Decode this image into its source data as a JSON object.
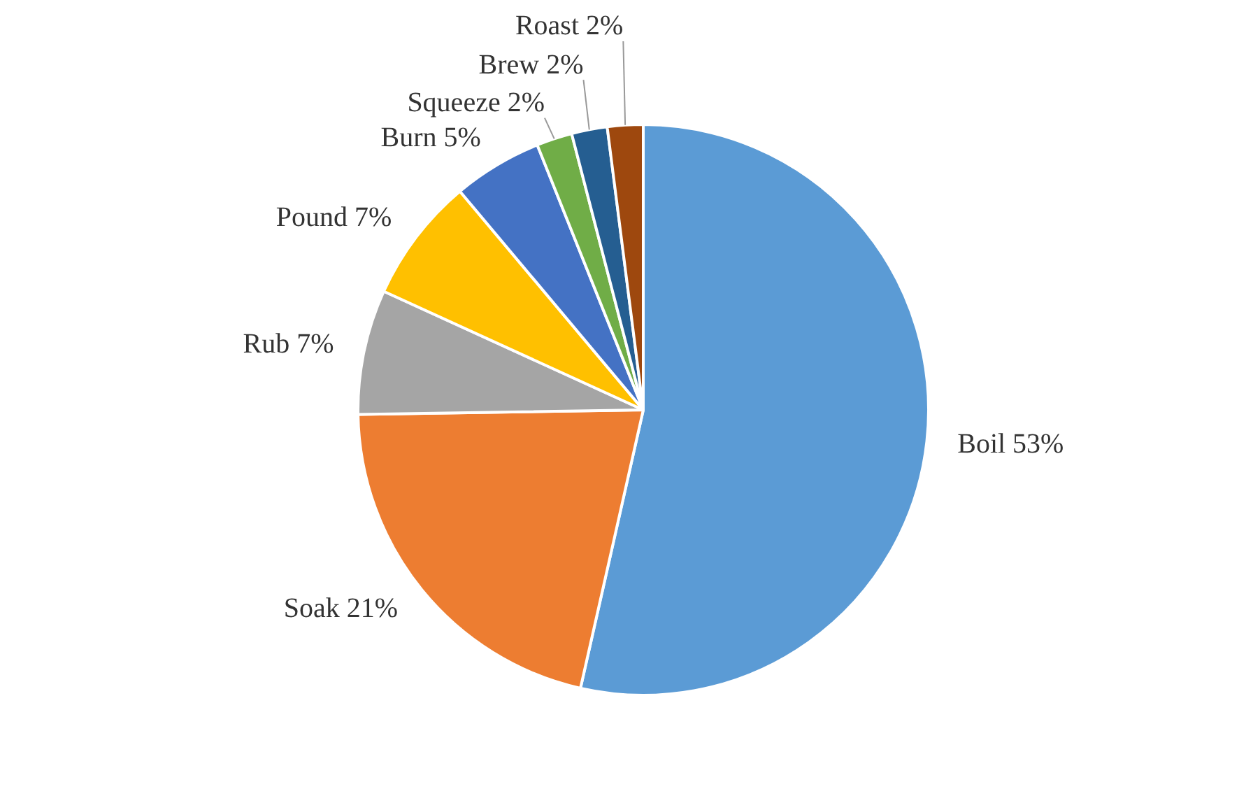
{
  "chart_data": {
    "type": "pie",
    "categories": [
      "Boil",
      "Soak",
      "Rub",
      "Pound",
      "Burn",
      "Squeeze",
      "Brew",
      "Roast"
    ],
    "values": [
      53,
      21,
      7,
      7,
      5,
      2,
      2,
      2
    ],
    "value_labels": [
      "53%",
      "21%",
      "7%",
      "7%",
      "5%",
      "2%",
      "2%",
      "2%"
    ],
    "colors": [
      "#5b9bd5",
      "#ed7d31",
      "#a5a5a5",
      "#ffc000",
      "#4472c4",
      "#70ad47",
      "#255e91",
      "#9e480e"
    ],
    "legend": false
  }
}
